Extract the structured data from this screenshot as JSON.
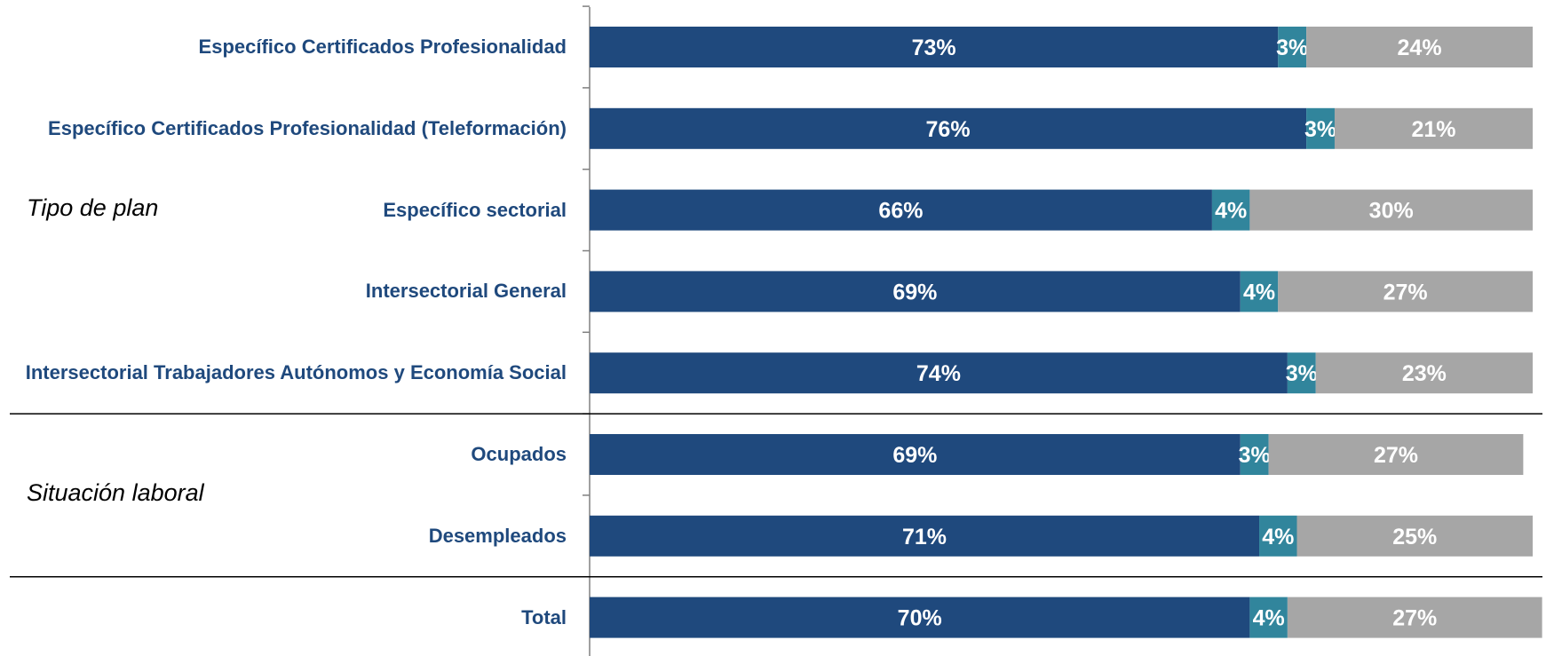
{
  "chart_data": {
    "type": "stacked_barh",
    "categories": [
      "Específico Certificados Profesionalidad",
      "Específico Certificados Profesionalidad (Teleformación)",
      "Específico sectorial",
      "Intersectorial General",
      "Intersectorial Trabajadores Autónomos y Economía Social",
      "Ocupados",
      "Desempleados",
      "Total"
    ],
    "groups": [
      {
        "label": "Tipo de plan",
        "count": 5
      },
      {
        "label": "Situación laboral",
        "count": 2
      }
    ],
    "xlim": [
      0,
      100
    ],
    "series": [
      {
        "color": "#1F497D",
        "values": [
          73,
          76,
          66,
          69,
          74,
          69,
          71,
          70
        ],
        "value_labels": [
          "73%",
          "76%",
          "66%",
          "69%",
          "74%",
          "69%",
          "71%",
          "70%"
        ]
      },
      {
        "color": "#31859C",
        "values": [
          3,
          3,
          4,
          4,
          3,
          3,
          4,
          4
        ],
        "value_labels": [
          "3%",
          "3%",
          "4%",
          "4%",
          "3%",
          "3%",
          "4%",
          "4%"
        ]
      },
      {
        "color": "#A6A6A6",
        "values": [
          24,
          21,
          30,
          27,
          23,
          27,
          25,
          27
        ],
        "value_labels": [
          "24%",
          "21%",
          "30%",
          "27%",
          "23%",
          "27%",
          "25%",
          "27%"
        ]
      }
    ]
  }
}
